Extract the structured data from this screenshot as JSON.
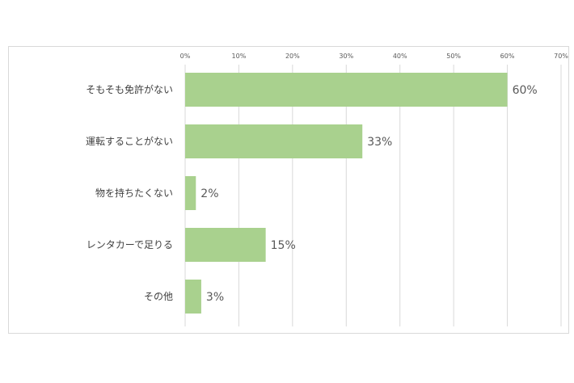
{
  "chart_data": {
    "type": "bar",
    "orientation": "horizontal",
    "title": "",
    "xlabel": "",
    "ylabel": "",
    "categories": [
      "そもそも免許がない",
      "運転することがない",
      "物を持ちたくない",
      "レンタカーで足りる",
      "その他"
    ],
    "values": [
      60,
      33,
      2,
      15,
      3
    ],
    "data_labels": [
      "60%",
      "33%",
      "2%",
      "15%",
      "3%"
    ],
    "xlim": [
      0,
      70
    ],
    "ticks": [
      0,
      10,
      20,
      30,
      40,
      50,
      60,
      70
    ],
    "tick_labels": [
      "0%",
      "10%",
      "20%",
      "30%",
      "40%",
      "50%",
      "60%",
      "70%"
    ],
    "tick_position": "top",
    "grid": true,
    "legend": "none",
    "bar_color": "#a9d18e"
  }
}
